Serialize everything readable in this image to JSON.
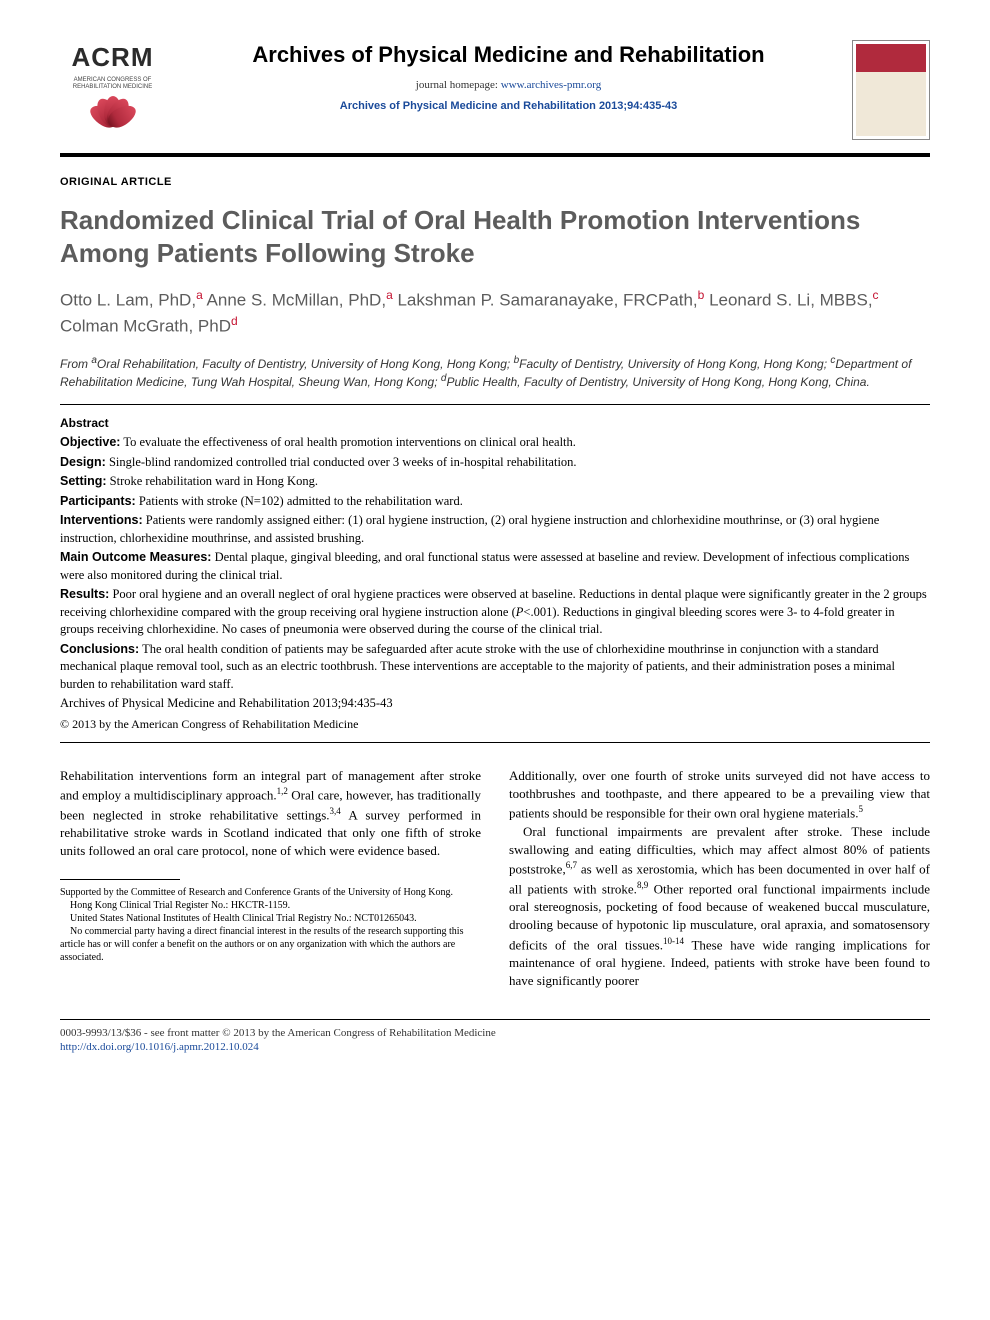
{
  "header": {
    "logo_text": "ACRM",
    "logo_sub1": "AMERICAN CONGRESS OF",
    "logo_sub2": "REHABILITATION MEDICINE",
    "journal_name": "Archives of Physical Medicine and Rehabilitation",
    "homepage_label": "journal homepage: ",
    "homepage_url": "www.archives-pmr.org",
    "citation": "Archives of Physical Medicine and Rehabilitation 2013;94:435-43"
  },
  "article": {
    "type": "ORIGINAL ARTICLE",
    "title": "Randomized Clinical Trial of Oral Health Promotion Interventions Among Patients Following Stroke",
    "authors_html": "Otto L. Lam, PhD,<sup>a</sup> Anne S. McMillan, PhD,<sup>a</sup> Lakshman P. Samaranayake, FRCPath,<sup>b</sup> Leonard S. Li, MBBS,<sup>c</sup> Colman McGrath, PhD<sup>d</sup>",
    "affiliations_html": "From <sup>a</sup>Oral Rehabilitation, Faculty of Dentistry, University of Hong Kong, Hong Kong; <sup>b</sup>Faculty of Dentistry, University of Hong Kong, Hong Kong; <sup>c</sup>Department of Rehabilitation Medicine, Tung Wah Hospital, Sheung Wan, Hong Kong; <sup>d</sup>Public Health, Faculty of Dentistry, University of Hong Kong, Hong Kong, China."
  },
  "abstract": {
    "heading": "Abstract",
    "items": [
      {
        "label": "Objective:",
        "text": " To evaluate the effectiveness of oral health promotion interventions on clinical oral health."
      },
      {
        "label": "Design:",
        "text": " Single-blind randomized controlled trial conducted over 3 weeks of in-hospital rehabilitation."
      },
      {
        "label": "Setting:",
        "text": " Stroke rehabilitation ward in Hong Kong."
      },
      {
        "label": "Participants:",
        "text": " Patients with stroke (N=102) admitted to the rehabilitation ward."
      },
      {
        "label": "Interventions:",
        "text": " Patients were randomly assigned either: (1) oral hygiene instruction, (2) oral hygiene instruction and chlorhexidine mouthrinse, or (3) oral hygiene instruction, chlorhexidine mouthrinse, and assisted brushing."
      },
      {
        "label": "Main Outcome Measures:",
        "text": " Dental plaque, gingival bleeding, and oral functional status were assessed at baseline and review. Development of infectious complications were also monitored during the clinical trial."
      },
      {
        "label": "Results:",
        "text": " Poor oral hygiene and an overall neglect of oral hygiene practices were observed at baseline. Reductions in dental plaque were significantly greater in the 2 groups receiving chlorhexidine compared with the group receiving oral hygiene instruction alone (<span class=\"ital\">P</span>&lt;.001). Reductions in gingival bleeding scores were 3- to 4-fold greater in groups receiving chlorhexidine. No cases of pneumonia were observed during the course of the clinical trial."
      },
      {
        "label": "Conclusions:",
        "text": " The oral health condition of patients may be safeguarded after acute stroke with the use of chlorhexidine mouthrinse in conjunction with a standard mechanical plaque removal tool, such as an electric toothbrush. These interventions are acceptable to the majority of patients, and their administration poses a minimal burden to rehabilitation ward staff."
      }
    ],
    "citation_line": "Archives of Physical Medicine and Rehabilitation 2013;94:435-43",
    "copyright": "© 2013 by the American Congress of Rehabilitation Medicine"
  },
  "body": {
    "para1": "Rehabilitation interventions form an integral part of management after stroke and employ a multidisciplinary approach.<sup>1,2</sup> Oral care, however, has traditionally been neglected in stroke rehabilitative settings.<sup>3,4</sup> A survey performed in rehabilitative stroke wards in Scotland indicated that only one fifth of stroke units followed an oral care protocol, none of which were evidence based.",
    "para2": "Additionally, over one fourth of stroke units surveyed did not have access to toothbrushes and toothpaste, and there appeared to be a prevailing view that patients should be responsible for their own oral hygiene materials.<sup>5</sup>",
    "para3": "Oral functional impairments are prevalent after stroke. These include swallowing and eating difficulties, which may affect almost 80% of patients poststroke,<sup>6,7</sup> as well as xerostomia, which has been documented in over half of all patients with stroke.<sup>8,9</sup> Other reported oral functional impairments include oral stereognosis, pocketing of food because of weakened buccal musculature, drooling because of hypotonic lip musculature, oral apraxia, and somatosensory deficits of the oral tissues.<sup>10-14</sup> These have wide ranging implications for maintenance of oral hygiene. Indeed, patients with stroke have been found to have significantly poorer"
  },
  "footnotes": {
    "f1": "Supported by the Committee of Research and Conference Grants of the University of Hong Kong.",
    "f2": "Hong Kong Clinical Trial Register No.: HKCTR-1159.",
    "f3": "United States National Institutes of Health Clinical Trial Registry No.: NCT01265043.",
    "f4": "No commercial party having a direct financial interest in the results of the research supporting this article has or will confer a benefit on the authors or on any organization with which the authors are associated."
  },
  "footer": {
    "line1": "0003-9993/13/$36 - see front matter © 2013 by the American Congress of Rehabilitation Medicine",
    "doi": "http://dx.doi.org/10.1016/j.apmr.2012.10.024"
  },
  "colors": {
    "accent_red": "#c41230",
    "link_blue": "#1a4a9a",
    "title_gray": "#5c5c5c"
  }
}
